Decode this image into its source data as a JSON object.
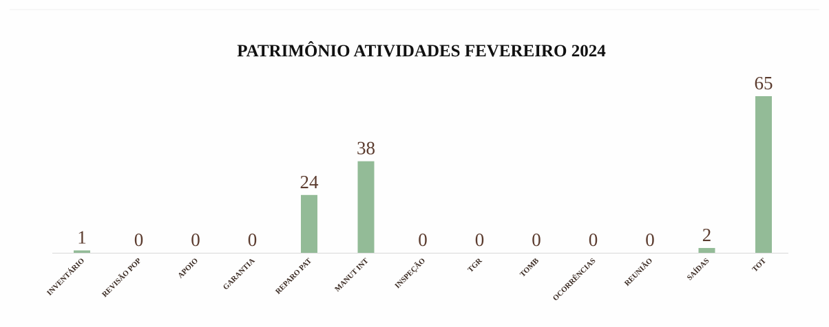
{
  "chart_data": {
    "type": "bar",
    "title": "PATRIMÔNIO ATIVIDADES FEVEREIRO 2024",
    "categories": [
      "INVENTÁRIO",
      "REVISÃO POP",
      "APOIO",
      "GARANTIA",
      "REPARO PAT",
      "MANUT INT",
      "INSPEÇÃO",
      "TGR",
      "TOMB",
      "OCORRÊNCIAS",
      "REUNIÃO",
      "SAÍDAS",
      "TOT"
    ],
    "values": [
      1,
      0,
      0,
      0,
      24,
      38,
      0,
      0,
      0,
      0,
      0,
      2,
      65
    ],
    "color": "#93bb97"
  }
}
